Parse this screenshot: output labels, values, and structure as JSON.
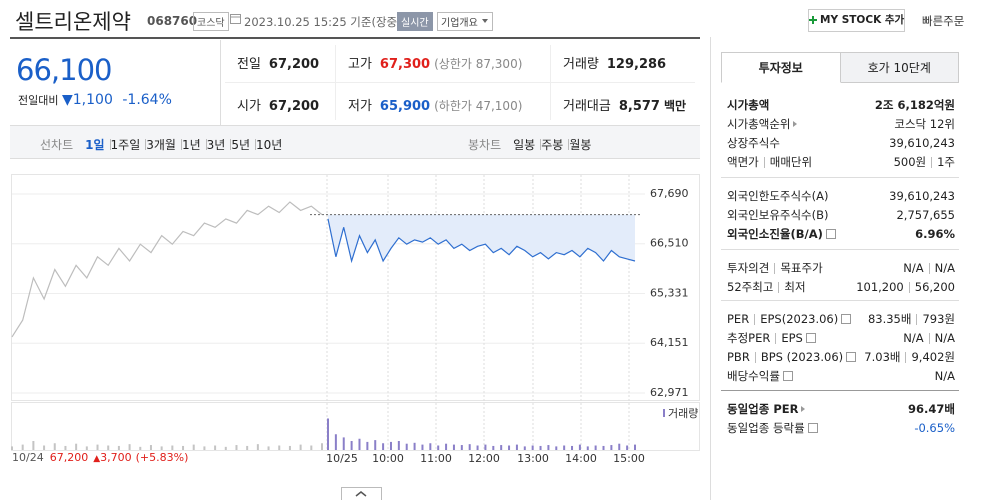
{
  "header": {
    "name": "셀트리온제약",
    "code": "068760",
    "market": "코스닥",
    "timestamp": "2023.10.25 15:25 기준(장중)",
    "realtime": "실시간",
    "overview": "기업개요",
    "my_stock": "MY STOCK 추가",
    "quick_order": "빠른주문"
  },
  "price": {
    "current": "66,100",
    "change_label": "전일대비",
    "arrow": "▼",
    "change": "1,100",
    "rate": "-1.64%"
  },
  "quote": [
    {
      "label": "전일",
      "value": "67,200"
    },
    {
      "label": "고가",
      "value": "67,300",
      "note": "(상한가 87,300)",
      "color": "#e0201b"
    },
    {
      "label": "거래량",
      "value": "129,286"
    },
    {
      "label": "시가",
      "value": "67,200"
    },
    {
      "label": "저가",
      "value": "65,900",
      "note": "(하한가 47,100)",
      "color": "#1a5fc8"
    },
    {
      "label": "거래대금",
      "value": "8,577",
      "note": "백만"
    }
  ],
  "tabs": {
    "line_label": "선차트",
    "periods": [
      "1일",
      "1주일",
      "3개월",
      "1년",
      "3년",
      "5년",
      "10년"
    ],
    "candle_label": "봉차트",
    "candles": [
      "일봉",
      "주봉",
      "월봉"
    ]
  },
  "chart": {
    "type": "line",
    "ylim": [
      62805,
      68140
    ],
    "yticks": [
      {
        "value": 67690,
        "label": "67,690"
      },
      {
        "value": 66510,
        "label": "66,510"
      },
      {
        "value": 65331,
        "label": "65,331"
      },
      {
        "value": 64151,
        "label": "64,151"
      },
      {
        "value": 62971,
        "label": "62,971"
      }
    ],
    "baseline": 67200,
    "x_labels": [
      "10/25",
      "10:00",
      "11:00",
      "12:00",
      "13:00",
      "14:00",
      "15:00"
    ],
    "series": [
      {
        "color": "#bdbdbd",
        "values": [
          64300,
          64700,
          65700,
          65200,
          65900,
          65500,
          66000,
          65700,
          66200,
          66000,
          66400,
          66100,
          66500,
          66300,
          66700,
          66500,
          66800,
          66700,
          67000,
          66900,
          67100,
          67000,
          67300,
          67200,
          67400,
          67250,
          67500,
          67300,
          67400,
          67200
        ]
      },
      {
        "color": "#2f6fd0",
        "values": [
          67100,
          66200,
          66900,
          66100,
          66700,
          66300,
          66600,
          66100,
          66400,
          66650,
          66500,
          66600,
          66550,
          66650,
          66500,
          66600,
          66400,
          66500,
          66350,
          66450,
          66500,
          66300,
          66400,
          66250,
          66450,
          66350,
          66200,
          66300,
          66150,
          66300,
          66250,
          66350,
          66200,
          66400,
          66300,
          66100,
          66350,
          66200,
          66150,
          66100
        ]
      }
    ],
    "volume": {
      "label": "거래량",
      "ylim": [
        0,
        100
      ],
      "colors": [
        "#c4c4c4",
        "#8a7fc8"
      ],
      "series": [
        [
          8,
          12,
          20,
          10,
          15,
          9,
          14,
          8,
          12,
          10,
          9,
          13,
          7,
          11,
          8,
          10,
          9,
          12,
          8,
          10,
          7,
          11,
          9,
          13,
          8,
          10,
          9,
          12,
          10,
          15
        ],
        [
          70,
          35,
          28,
          20,
          25,
          18,
          22,
          15,
          18,
          20,
          14,
          16,
          12,
          15,
          10,
          14,
          12,
          11,
          13,
          10,
          12,
          9,
          11,
          10,
          12,
          8,
          10,
          9,
          11,
          8,
          10,
          9,
          12,
          8,
          10,
          9,
          11,
          14,
          10,
          12
        ]
      ]
    },
    "prev_day": {
      "date": "10/24",
      "price": "67,200",
      "arrow": "▲",
      "change": "3,700",
      "rate": "(+5.83%)"
    }
  },
  "info_tabs": [
    "투자정보",
    "호가 10단계"
  ],
  "info_groups": [
    [
      {
        "label": [
          "시가총액"
        ],
        "value": [
          "2조 6,182억원"
        ],
        "bold": true
      },
      {
        "label": [
          "시가총액순위"
        ],
        "arrow": true,
        "value": [
          "코스닥 12위"
        ]
      },
      {
        "label": [
          "상장주식수"
        ],
        "value": [
          "39,610,243"
        ]
      },
      {
        "label": [
          "액면가",
          "매매단위"
        ],
        "value": [
          "500원",
          "1주"
        ]
      }
    ],
    [
      {
        "label": [
          "외국인한도주식수(A)"
        ],
        "value": [
          "39,610,243"
        ]
      },
      {
        "label": [
          "외국인보유주식수(B)"
        ],
        "value": [
          "2,757,655"
        ]
      },
      {
        "label": [
          "외국인소진율(B/A)"
        ],
        "help": true,
        "value": [
          "6.96%"
        ],
        "bold": true
      }
    ],
    [
      {
        "label": [
          "투자의견",
          "목표주가"
        ],
        "value": [
          "N/A",
          "N/A"
        ]
      },
      {
        "label": [
          "52주최고",
          "최저"
        ],
        "value": [
          "101,200",
          "56,200"
        ]
      }
    ],
    [
      {
        "label": [
          "PER",
          "EPS(2023.06)"
        ],
        "help": true,
        "value": [
          "83.35배",
          "793원"
        ]
      },
      {
        "label": [
          "추정PER",
          "EPS"
        ],
        "help": true,
        "value": [
          "N/A",
          "N/A"
        ]
      },
      {
        "label": [
          "PBR",
          "BPS (2023.06)"
        ],
        "help": true,
        "value": [
          "7.03배",
          "9,402원"
        ]
      },
      {
        "label": [
          "배당수익률"
        ],
        "help": true,
        "value": [
          "N/A"
        ]
      }
    ],
    [
      {
        "label": [
          "동일업종 PER"
        ],
        "arrow": true,
        "value": [
          "96.47배"
        ],
        "bold": true
      },
      {
        "label": [
          "동일업종 등락률"
        ],
        "help": true,
        "value": [
          "-0.65%"
        ],
        "color": "#1a5fc8"
      }
    ]
  ]
}
